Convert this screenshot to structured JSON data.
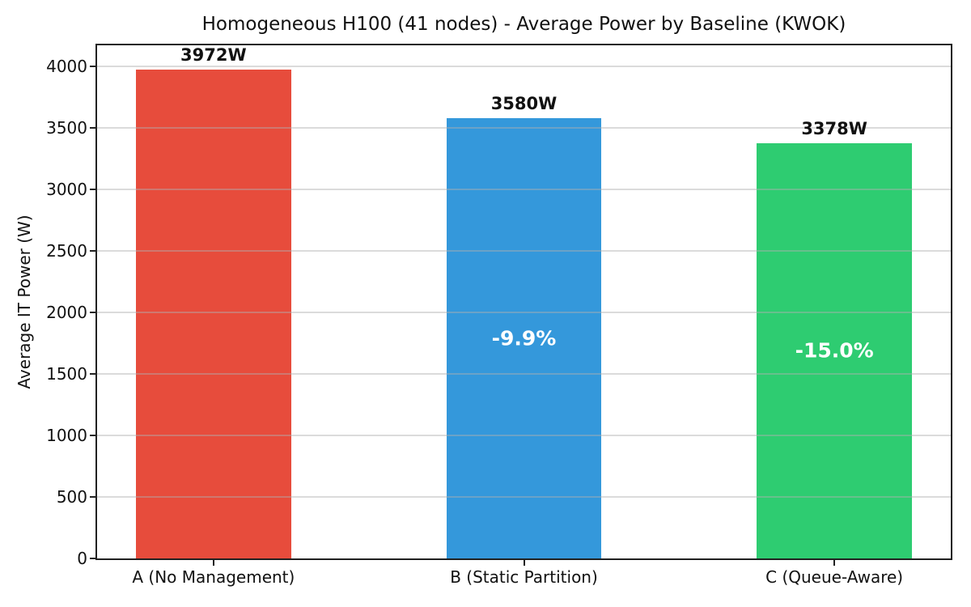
{
  "chart_data": {
    "type": "bar",
    "title": "Homogeneous H100 (41 nodes) - Average Power by Baseline (KWOK)",
    "ylabel": "Average IT Power (W)",
    "xlabel": "",
    "categories": [
      "A (No Management)",
      "B (Static Partition)",
      "C (Queue-Aware)"
    ],
    "values": [
      3972,
      3580,
      3378
    ],
    "bar_value_labels": [
      "3972W",
      "3580W",
      "3378W"
    ],
    "bar_annotations": [
      null,
      "-9.9%",
      "-15.0%"
    ],
    "bar_colors": [
      "#e74c3c",
      "#3498db",
      "#2ecc71"
    ],
    "yticks": [
      0,
      500,
      1000,
      1500,
      2000,
      2500,
      3000,
      3500,
      4000
    ],
    "ylim": [
      0,
      4171
    ],
    "xlim": [
      -0.375,
      2.375
    ],
    "bar_width": 0.5,
    "grid": true,
    "grid_over_bars": true,
    "legend_position": "none",
    "axis_color": "#212121",
    "grid_color": "rgba(176,176,176,0.45)",
    "text_color": "#111111",
    "annotation_text_color": "#ffffff"
  }
}
